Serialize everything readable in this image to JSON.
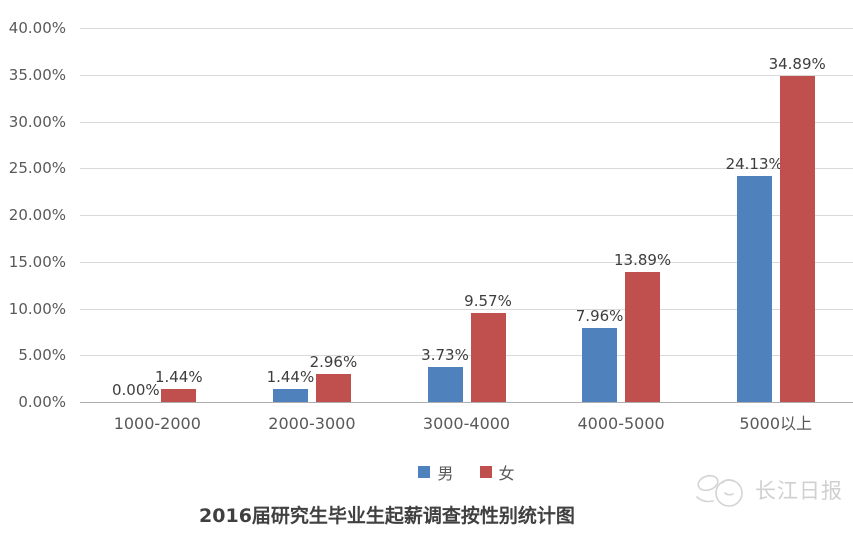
{
  "chart_data": {
    "type": "bar",
    "title": "2016届研究生毕业生起薪调查按性别统计图",
    "categories": [
      "1000-2000",
      "2000-3000",
      "3000-4000",
      "4000-5000",
      "5000以上"
    ],
    "series": [
      {
        "name": "男",
        "color": "#4F81BD",
        "values": [
          0.0,
          1.44,
          3.73,
          7.96,
          24.13
        ]
      },
      {
        "name": "女",
        "color": "#C0504D",
        "values": [
          1.44,
          2.96,
          9.57,
          13.89,
          34.89
        ]
      }
    ],
    "value_label_suffix": "%",
    "y_ticks": [
      "40.00%",
      "35.00%",
      "30.00%",
      "25.00%",
      "20.00%",
      "15.00%",
      "10.00%",
      "5.00%",
      "0.00%"
    ],
    "ylim": [
      0,
      40
    ],
    "xlabel": "",
    "ylabel": "",
    "grid": true,
    "legend_position": "bottom"
  },
  "watermark": {
    "text": "长江日报",
    "logo": "penguin-sketch-icon",
    "color": "#d0d0d0"
  },
  "colors": {
    "gridline": "#d9d9d9",
    "axis_line": "#aeaeae",
    "tick_text": "#595959",
    "value_label_text": "#3d3d3d",
    "title_text": "#404040",
    "male_bar": "#4F81BD",
    "female_bar": "#C0504D"
  }
}
